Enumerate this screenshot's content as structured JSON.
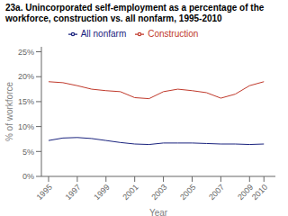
{
  "chart_data": {
    "type": "line",
    "title": "23a. Unincorporated self-employment as a percentage of the workforce, construction vs. all nonfarm, 1995-2010",
    "xlabel": "Year",
    "ylabel": "% of workforce",
    "x": [
      1995,
      1996,
      1997,
      1998,
      1999,
      2000,
      2001,
      2002,
      2003,
      2004,
      2005,
      2006,
      2007,
      2008,
      2009,
      2010
    ],
    "series": [
      {
        "name": "Construction",
        "color": "#c0392b",
        "values": [
          19.0,
          18.8,
          18.2,
          17.5,
          17.2,
          17.0,
          15.8,
          15.6,
          17.0,
          17.5,
          17.2,
          16.8,
          15.7,
          16.5,
          18.2,
          19.0
        ]
      },
      {
        "name": "All nonfarm",
        "color": "#1a237e",
        "values": [
          7.2,
          7.7,
          7.8,
          7.6,
          7.2,
          6.8,
          6.5,
          6.4,
          6.7,
          6.7,
          6.7,
          6.6,
          6.5,
          6.5,
          6.4,
          6.5
        ]
      }
    ],
    "xlim": [
      1994.5,
      2010.8
    ],
    "xticks": [
      1995,
      1997,
      1999,
      2001,
      2003,
      2005,
      2007,
      2009,
      2010
    ],
    "ylim": [
      0,
      26
    ],
    "yticks": [
      {
        "value": 0,
        "label": "0%"
      },
      {
        "value": 5,
        "label": "5%"
      },
      {
        "value": 10,
        "label": "10%"
      },
      {
        "value": 15,
        "label": "15%"
      },
      {
        "value": 20,
        "label": "20%"
      },
      {
        "value": 25,
        "label": "25%"
      }
    ],
    "grid": false,
    "legend": "top"
  }
}
